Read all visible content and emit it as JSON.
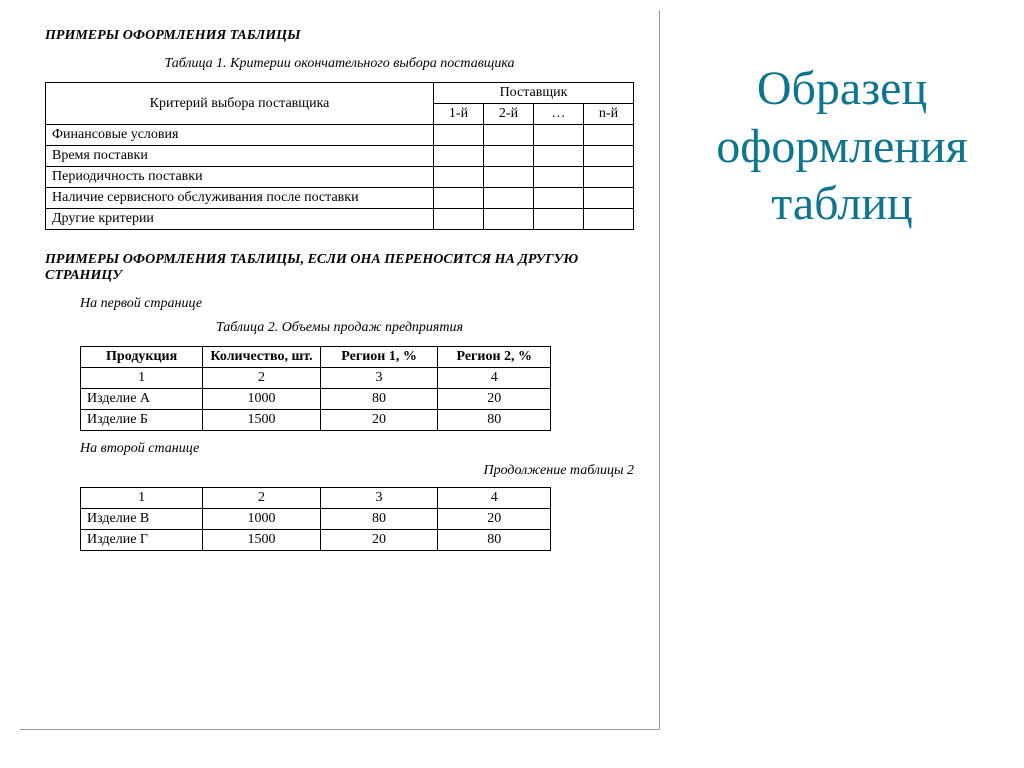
{
  "slide_title_lines": [
    "Образец",
    "оформления",
    "таблиц"
  ],
  "slide_title_color": "#0f748f",
  "section1_heading": "ПРИМЕРЫ ОФОРМЛЕНИЯ ТАБЛИЦЫ",
  "table1": {
    "caption": "Таблица 1. Критерии окончательного выбора поставщика",
    "criterion_header": "Критерий выбора поставщика",
    "supplier_group_header": "Поставщик",
    "supplier_cols": [
      "1-й",
      "2-й",
      "…",
      "n-й"
    ],
    "rows": [
      "Финансовые условия",
      "Время поставки",
      "Периодичность поставки",
      "Наличие сервисного обслуживания после поставки",
      "Другие критерии"
    ]
  },
  "section2_heading": "ПРИМЕРЫ ОФОРМЛЕНИЯ ТАБЛИЦЫ, ЕСЛИ ОНА ПЕРЕНОСИТСЯ НА ДРУГУЮ СТРАНИЦУ",
  "page1_note": "На первой странице",
  "table2": {
    "caption": "Таблица 2. Объемы продаж предприятия",
    "columns": [
      "Продукция",
      "Количество, шт.",
      "Регион 1, %",
      "Регион 2, %"
    ],
    "col_numbers": [
      "1",
      "2",
      "3",
      "4"
    ],
    "rows_part1": [
      [
        "Изделие А",
        "1000",
        "80",
        "20"
      ],
      [
        "Изделие Б",
        "1500",
        "20",
        "80"
      ]
    ],
    "page2_note": "На второй станице",
    "continuation_caption": "Продолжение таблицы 2",
    "rows_part2": [
      [
        "Изделие В",
        "1000",
        "80",
        "20"
      ],
      [
        "Изделие Г",
        "1500",
        "20",
        "80"
      ]
    ]
  },
  "table_border_color": "#000000",
  "page_background": "#ffffff"
}
